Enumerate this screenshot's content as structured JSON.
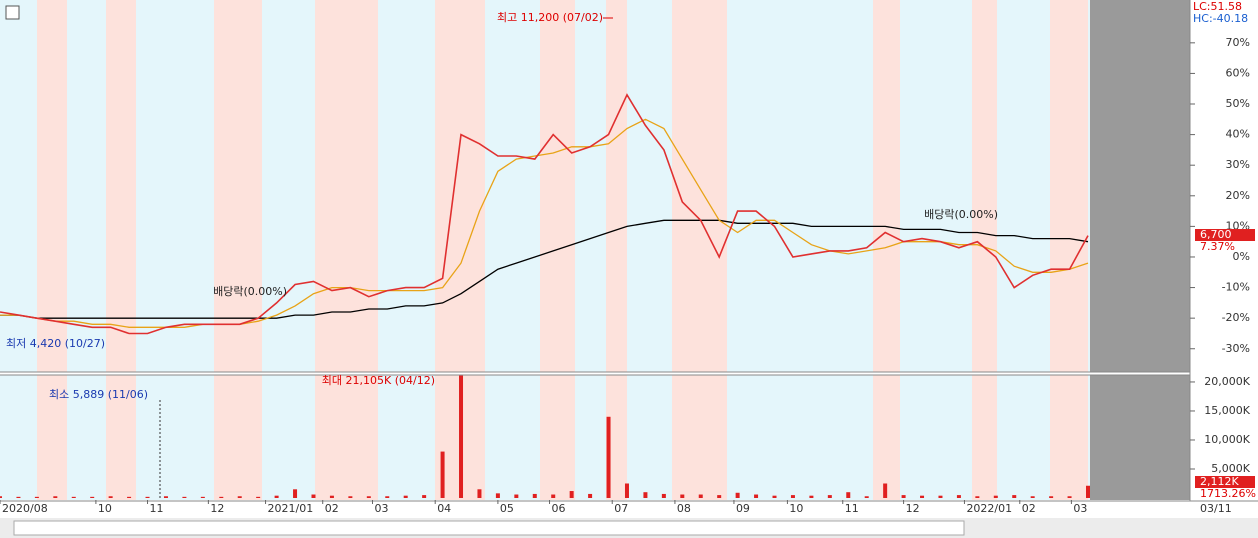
{
  "chart_data": {
    "type": "line",
    "series": [
      {
        "color": "#e03030",
        "values": [
          -18,
          -19,
          -20,
          -21,
          -22,
          -23,
          -23,
          -25,
          -25,
          -23,
          -22,
          -22,
          -22,
          -22,
          -20,
          -15,
          -9,
          -8,
          -11,
          -10,
          -13,
          -11,
          -10,
          -10,
          -7,
          40,
          37,
          33,
          33,
          32,
          40,
          34,
          36,
          40,
          53,
          43,
          35,
          18,
          12,
          0,
          15,
          15,
          10,
          0,
          1,
          2,
          2,
          3,
          8,
          5,
          6,
          5,
          3,
          5,
          0,
          -10,
          -6,
          -4,
          -4,
          7
        ]
      },
      {
        "color": "#e8a317",
        "values": [
          -19,
          -19,
          -20,
          -21,
          -21,
          -22,
          -22,
          -23,
          -23,
          -23,
          -23,
          -22,
          -22,
          -22,
          -21,
          -19,
          -16,
          -12,
          -10,
          -10,
          -11,
          -11,
          -11,
          -11,
          -10,
          -2,
          15,
          28,
          32,
          33,
          34,
          36,
          36,
          37,
          42,
          45,
          42,
          32,
          22,
          12,
          8,
          12,
          12,
          8,
          4,
          2,
          1,
          2,
          3,
          5,
          5,
          5,
          4,
          4,
          2,
          -3,
          -5,
          -5,
          -4,
          -2
        ]
      },
      {
        "color": "#000000",
        "values": [
          -19,
          -19,
          -20,
          -20,
          -20,
          -20,
          -20,
          -20,
          -20,
          -20,
          -20,
          -20,
          -20,
          -20,
          -20,
          -20,
          -19,
          -19,
          -18,
          -18,
          -17,
          -17,
          -16,
          -16,
          -15,
          -12,
          -8,
          -4,
          -2,
          0,
          2,
          4,
          6,
          8,
          10,
          11,
          12,
          12,
          12,
          12,
          11,
          11,
          11,
          11,
          10,
          10,
          10,
          10,
          10,
          9,
          9,
          9,
          8,
          8,
          7,
          7,
          6,
          6,
          6,
          5
        ]
      }
    ],
    "xlim": [
      0,
      59
    ],
    "xticks": [
      {
        "value": 0,
        "label": "2020/08"
      },
      {
        "value": 5.2,
        "label": "10"
      },
      {
        "value": 8,
        "label": "11"
      },
      {
        "value": 11.3,
        "label": "12"
      },
      {
        "value": 14.4,
        "label": "2021/01"
      },
      {
        "value": 17.5,
        "label": "02"
      },
      {
        "value": 20.2,
        "label": "03"
      },
      {
        "value": 23.6,
        "label": "04"
      },
      {
        "value": 27,
        "label": "05"
      },
      {
        "value": 29.8,
        "label": "06"
      },
      {
        "value": 33.2,
        "label": "07"
      },
      {
        "value": 36.6,
        "label": "08"
      },
      {
        "value": 39.8,
        "label": "09"
      },
      {
        "value": 42.7,
        "label": "10"
      },
      {
        "value": 45.7,
        "label": "11"
      },
      {
        "value": 49,
        "label": "12"
      },
      {
        "value": 52.3,
        "label": "2022/01"
      },
      {
        "value": 55.3,
        "label": "02"
      },
      {
        "value": 58.1,
        "label": "03"
      }
    ],
    "ylim": [
      -37.6,
      84
    ],
    "yticks": [
      {
        "value": 70,
        "label": "70%"
      },
      {
        "value": 60,
        "label": "60%"
      },
      {
        "value": 50,
        "label": "50%"
      },
      {
        "value": 40,
        "label": "40%"
      },
      {
        "value": 30,
        "label": "30%"
      },
      {
        "value": 20,
        "label": "20%"
      },
      {
        "value": 10,
        "label": "10%"
      },
      {
        "value": 0,
        "label": "0%"
      },
      {
        "value": -10,
        "label": "-10%"
      },
      {
        "value": -20,
        "label": "-20%"
      },
      {
        "value": -30,
        "label": "-30%"
      }
    ],
    "volume": {
      "color": "#e02020",
      "values": [
        300,
        200,
        200,
        300,
        200,
        200,
        300,
        200,
        200,
        300,
        200,
        200,
        200,
        300,
        200,
        400,
        1500,
        600,
        400,
        300,
        300,
        300,
        400,
        500,
        8000,
        21105,
        1500,
        800,
        600,
        700,
        600,
        1200,
        700,
        14000,
        2500,
        1000,
        700,
        600,
        600,
        500,
        900,
        600,
        400,
        500,
        400,
        500,
        1000,
        300,
        2500,
        500,
        400,
        400,
        500,
        300,
        400,
        500,
        300,
        300,
        300,
        2112
      ],
      "ylim": [
        0,
        21200
      ],
      "yticks": [
        {
          "value": 20000,
          "label": "20,000K"
        },
        {
          "value": 15000,
          "label": "15,000K"
        },
        {
          "value": 10000,
          "label": "10,000K"
        },
        {
          "value": 5000,
          "label": "5,000K"
        }
      ]
    },
    "annotations": [
      "최고 11,200 (07/02)",
      "최저 4,420 (10/27)",
      "배당락(0.00%)",
      "배당락(0.00%)",
      "최대 21,105K (04/12)",
      "최소 5,889 (11/06)"
    ],
    "lc": "LC:51.58",
    "hc": "HC:-40.18",
    "last_price": "6,700",
    "last_change": "7.37%",
    "last_volume": "2,112K",
    "volume_change": "1713.26%",
    "end_date": "03/11"
  }
}
